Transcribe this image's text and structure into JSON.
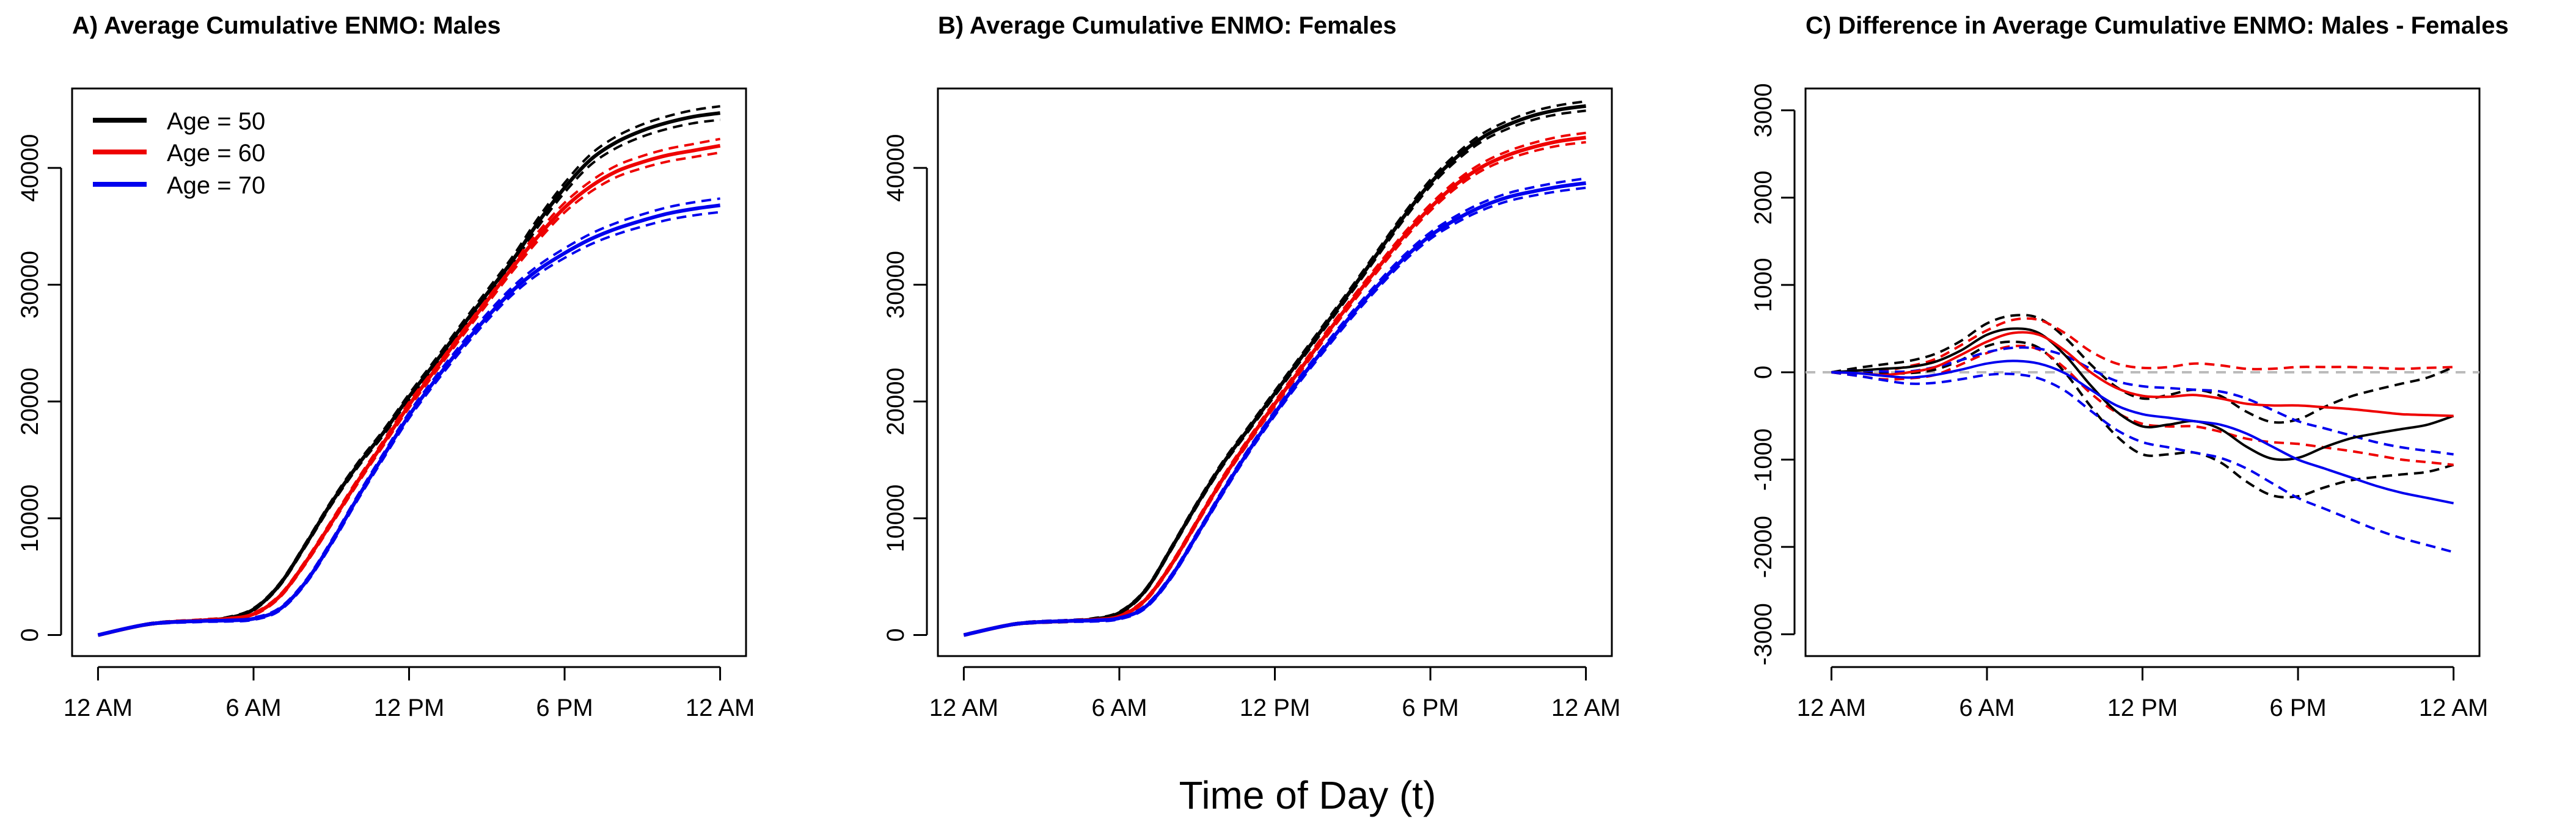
{
  "xlabel": "Time of Day (t)",
  "legend": {
    "entries": [
      {
        "label": "Age = 50",
        "color": "#000000"
      },
      {
        "label": "Age = 60",
        "color": "#ee0000"
      },
      {
        "label": "Age = 70",
        "color": "#0000ee"
      }
    ]
  },
  "chart_data": [
    {
      "type": "line",
      "title": "A) Average Cumulative ENMO: Males",
      "xlabel": "Time of Day (t)",
      "ylabel": "",
      "x_tick_labels": [
        "12 AM",
        "6 AM",
        "12 PM",
        "6 PM",
        "12 AM"
      ],
      "x": [
        0,
        2,
        4,
        5,
        6,
        7,
        8,
        9,
        10,
        11,
        12,
        13,
        14,
        15,
        16,
        17,
        18,
        19,
        20,
        21,
        22,
        23,
        24
      ],
      "xlim": [
        -1,
        25
      ],
      "y_ticks": [
        0,
        10000,
        20000,
        30000,
        40000
      ],
      "ylim": [
        -1800,
        46800
      ],
      "series": [
        {
          "name": "Age = 50",
          "color": "#000000",
          "values": [
            0,
            950,
            1250,
            1450,
            2200,
            4300,
            7700,
            11300,
            14500,
            17300,
            20400,
            23300,
            26300,
            29200,
            32100,
            35400,
            38300,
            40700,
            42200,
            43200,
            43900,
            44400,
            44700
          ]
        },
        {
          "name": "Age = 60",
          "color": "#ee0000",
          "values": [
            0,
            950,
            1250,
            1400,
            1800,
            3300,
            6200,
            9600,
            13100,
            16400,
            19700,
            22700,
            25700,
            28600,
            31500,
            34200,
            36600,
            38400,
            39700,
            40500,
            41100,
            41500,
            41900
          ]
        },
        {
          "name": "Age = 70",
          "color": "#0000ee",
          "values": [
            0,
            950,
            1200,
            1250,
            1400,
            2200,
            4500,
            7900,
            11700,
            15300,
            18800,
            21800,
            24600,
            27200,
            29500,
            31300,
            32700,
            33900,
            34800,
            35500,
            36100,
            36500,
            36800
          ]
        }
      ],
      "ci_half_width": [
        0,
        60,
        80,
        90,
        100,
        120,
        150,
        180,
        200,
        220,
        240,
        260,
        280,
        300,
        330,
        370,
        410,
        450,
        490,
        520,
        540,
        560,
        580
      ]
    },
    {
      "type": "line",
      "title": "B) Average Cumulative ENMO: Females",
      "xlabel": "Time of Day (t)",
      "ylabel": "",
      "x_tick_labels": [
        "12 AM",
        "6 AM",
        "12 PM",
        "6 PM",
        "12 AM"
      ],
      "x": [
        0,
        2,
        4,
        5,
        6,
        7,
        8,
        9,
        10,
        11,
        12,
        13,
        14,
        15,
        16,
        17,
        18,
        19,
        20,
        21,
        22,
        23,
        24
      ],
      "xlim": [
        -1,
        25
      ],
      "y_ticks": [
        0,
        10000,
        20000,
        30000,
        40000
      ],
      "ylim": [
        -1800,
        46800
      ],
      "series": [
        {
          "name": "Age = 50",
          "color": "#000000",
          "values": [
            0,
            950,
            1200,
            1350,
            1900,
            3800,
            7400,
            11200,
            14700,
            17700,
            20700,
            23700,
            26700,
            29700,
            32800,
            35900,
            38700,
            40900,
            42600,
            43700,
            44500,
            45000,
            45300
          ]
        },
        {
          "name": "Age = 60",
          "color": "#ee0000",
          "values": [
            0,
            950,
            1200,
            1300,
            1600,
            3000,
            6000,
            9700,
            13400,
            16700,
            19800,
            22800,
            25800,
            28700,
            31500,
            34200,
            36600,
            38600,
            40100,
            41100,
            41800,
            42300,
            42600
          ]
        },
        {
          "name": "Age = 70",
          "color": "#0000ee",
          "values": [
            0,
            950,
            1200,
            1250,
            1450,
            2400,
            5000,
            8600,
            12300,
            15800,
            19000,
            22000,
            24800,
            27500,
            30000,
            32300,
            34200,
            35600,
            36700,
            37500,
            38000,
            38400,
            38700
          ]
        }
      ],
      "ci_half_width": [
        0,
        60,
        80,
        90,
        100,
        120,
        150,
        170,
        190,
        200,
        210,
        220,
        230,
        240,
        250,
        260,
        280,
        300,
        320,
        340,
        360,
        380,
        400
      ]
    },
    {
      "type": "line",
      "title": "C) Difference in Average Cumulative ENMO: Males - Females",
      "xlabel": "Time of Day (t)",
      "ylabel": "",
      "x_tick_labels": [
        "12 AM",
        "6 AM",
        "12 PM",
        "6 PM",
        "12 AM"
      ],
      "x": [
        0,
        1,
        2,
        3,
        4,
        5,
        6,
        7,
        8,
        9,
        10,
        11,
        12,
        13,
        14,
        15,
        16,
        17,
        18,
        19,
        20,
        21,
        22,
        23,
        24
      ],
      "xlim": [
        -1,
        25
      ],
      "y_ticks": [
        -3000,
        -2000,
        -1000,
        0,
        1000,
        2000,
        3000
      ],
      "ylim": [
        -3250,
        3250
      ],
      "reference_line": {
        "y": 0,
        "color": "#bbbbbb"
      },
      "series": [
        {
          "name": "Age = 50",
          "color": "#000000",
          "values": [
            0,
            20,
            40,
            60,
            120,
            250,
            430,
            500,
            450,
            200,
            -150,
            -450,
            -620,
            -600,
            -560,
            -650,
            -850,
            -990,
            -980,
            -860,
            -760,
            -700,
            -650,
            -600,
            -500
          ]
        },
        {
          "name": "Age = 60",
          "color": "#ee0000",
          "values": [
            0,
            -10,
            -30,
            0,
            60,
            200,
            350,
            450,
            430,
            250,
            0,
            -180,
            -270,
            -280,
            -260,
            -300,
            -360,
            -380,
            -380,
            -400,
            -420,
            -450,
            -480,
            -490,
            -500
          ]
        },
        {
          "name": "Age = 70",
          "color": "#0000ee",
          "values": [
            0,
            -10,
            -40,
            -60,
            -30,
            30,
            100,
            130,
            100,
            -10,
            -200,
            -380,
            -480,
            -520,
            -560,
            -600,
            -700,
            -850,
            -1000,
            -1100,
            -1200,
            -1300,
            -1380,
            -1440,
            -1500
          ]
        }
      ],
      "ci_half_width": [
        0,
        30,
        50,
        70,
        90,
        110,
        130,
        150,
        170,
        200,
        240,
        280,
        320,
        340,
        360,
        380,
        400,
        420,
        440,
        460,
        480,
        500,
        520,
        540,
        560
      ]
    }
  ]
}
